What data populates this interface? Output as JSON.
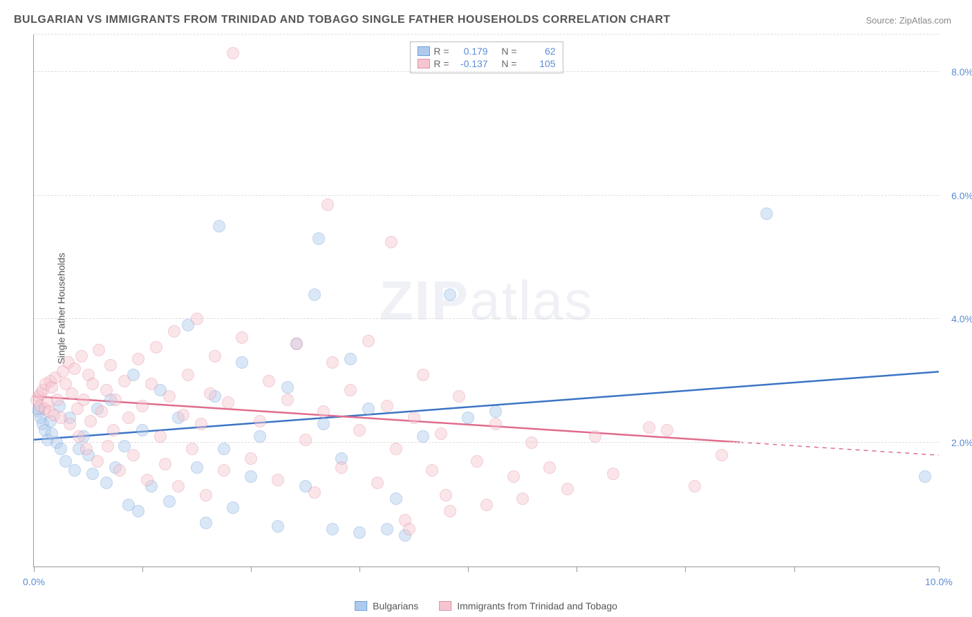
{
  "title": "BULGARIAN VS IMMIGRANTS FROM TRINIDAD AND TOBAGO SINGLE FATHER HOUSEHOLDS CORRELATION CHART",
  "source": "Source: ZipAtlas.com",
  "ylabel": "Single Father Households",
  "watermark": {
    "part1": "ZIP",
    "part2": "atlas"
  },
  "chart": {
    "type": "scatter",
    "background_color": "#ffffff",
    "grid_color": "#dddddd",
    "axis_color": "#999999",
    "xlim": [
      0,
      10
    ],
    "ylim": [
      0,
      8.6
    ],
    "xtick_positions": [
      0,
      1.2,
      2.4,
      3.6,
      4.8,
      6.0,
      7.2,
      8.4,
      10.0
    ],
    "xtick_labels": {
      "0": "0.0%",
      "10": "10.0%"
    },
    "ytick_positions": [
      2.0,
      4.0,
      6.0,
      8.0
    ],
    "ytick_labels": [
      "2.0%",
      "4.0%",
      "6.0%",
      "8.0%"
    ],
    "point_radius": 9,
    "point_opacity": 0.45,
    "label_fontsize": 14,
    "label_color": "#5b8cd6",
    "trend_line_width": 2.5
  },
  "series": [
    {
      "key": "bulgarians",
      "label": "Bulgarians",
      "R": "0.179",
      "N": "62",
      "fill": "#aecbec",
      "stroke": "#6f9fd8",
      "trend_color": "#3b74c4",
      "trend": {
        "x1": 0,
        "y1": 2.05,
        "x2": 10,
        "y2": 3.15,
        "solid_until_x": 10
      },
      "points": [
        [
          0.05,
          2.5
        ],
        [
          0.08,
          2.4
        ],
        [
          0.1,
          2.3
        ],
        [
          0.12,
          2.2
        ],
        [
          0.15,
          2.05
        ],
        [
          0.18,
          2.35
        ],
        [
          0.2,
          2.15
        ],
        [
          0.25,
          2.0
        ],
        [
          0.28,
          2.6
        ],
        [
          0.3,
          1.9
        ],
        [
          0.35,
          1.7
        ],
        [
          0.4,
          2.4
        ],
        [
          0.45,
          1.55
        ],
        [
          0.5,
          1.9
        ],
        [
          0.55,
          2.1
        ],
        [
          0.6,
          1.8
        ],
        [
          0.65,
          1.5
        ],
        [
          0.7,
          2.55
        ],
        [
          0.8,
          1.35
        ],
        [
          0.85,
          2.7
        ],
        [
          0.9,
          1.6
        ],
        [
          1.0,
          1.95
        ],
        [
          1.05,
          1.0
        ],
        [
          1.1,
          3.1
        ],
        [
          1.15,
          0.9
        ],
        [
          1.2,
          2.2
        ],
        [
          1.3,
          1.3
        ],
        [
          1.4,
          2.85
        ],
        [
          1.5,
          1.05
        ],
        [
          1.6,
          2.4
        ],
        [
          1.7,
          3.9
        ],
        [
          1.8,
          1.6
        ],
        [
          1.9,
          0.7
        ],
        [
          2.0,
          2.75
        ],
        [
          2.05,
          5.5
        ],
        [
          2.1,
          1.9
        ],
        [
          2.2,
          0.95
        ],
        [
          2.3,
          3.3
        ],
        [
          2.4,
          1.45
        ],
        [
          2.5,
          2.1
        ],
        [
          2.7,
          0.65
        ],
        [
          2.8,
          2.9
        ],
        [
          2.9,
          3.6
        ],
        [
          3.0,
          1.3
        ],
        [
          3.1,
          4.4
        ],
        [
          3.15,
          5.3
        ],
        [
          3.2,
          2.3
        ],
        [
          3.3,
          0.6
        ],
        [
          3.4,
          1.75
        ],
        [
          3.5,
          3.35
        ],
        [
          3.6,
          0.55
        ],
        [
          3.7,
          2.55
        ],
        [
          3.9,
          0.6
        ],
        [
          4.0,
          1.1
        ],
        [
          4.1,
          0.5
        ],
        [
          4.3,
          2.1
        ],
        [
          4.6,
          4.4
        ],
        [
          4.8,
          2.4
        ],
        [
          5.1,
          2.5
        ],
        [
          8.1,
          5.7
        ],
        [
          9.85,
          1.45
        ],
        [
          0.05,
          2.55
        ]
      ]
    },
    {
      "key": "trinidad",
      "label": "Immigrants from Trinidad and Tobago",
      "R": "-0.137",
      "N": "105",
      "fill": "#f5c6d0",
      "stroke": "#e48fa6",
      "trend_color": "#e06c8c",
      "trend": {
        "x1": 0,
        "y1": 2.75,
        "x2": 10,
        "y2": 1.8,
        "solid_until_x": 7.8
      },
      "points": [
        [
          0.03,
          2.7
        ],
        [
          0.05,
          2.75
        ],
        [
          0.07,
          2.6
        ],
        [
          0.08,
          2.8
        ],
        [
          0.1,
          2.85
        ],
        [
          0.12,
          2.55
        ],
        [
          0.13,
          2.95
        ],
        [
          0.15,
          2.65
        ],
        [
          0.17,
          2.5
        ],
        [
          0.18,
          3.0
        ],
        [
          0.2,
          2.9
        ],
        [
          0.22,
          2.45
        ],
        [
          0.24,
          3.05
        ],
        [
          0.26,
          2.7
        ],
        [
          0.3,
          2.4
        ],
        [
          0.32,
          3.15
        ],
        [
          0.35,
          2.95
        ],
        [
          0.38,
          3.3
        ],
        [
          0.4,
          2.3
        ],
        [
          0.42,
          2.8
        ],
        [
          0.45,
          3.2
        ],
        [
          0.48,
          2.55
        ],
        [
          0.5,
          2.1
        ],
        [
          0.53,
          3.4
        ],
        [
          0.55,
          2.7
        ],
        [
          0.58,
          1.9
        ],
        [
          0.6,
          3.1
        ],
        [
          0.63,
          2.35
        ],
        [
          0.65,
          2.95
        ],
        [
          0.7,
          1.7
        ],
        [
          0.72,
          3.5
        ],
        [
          0.75,
          2.5
        ],
        [
          0.8,
          2.85
        ],
        [
          0.82,
          1.95
        ],
        [
          0.85,
          3.25
        ],
        [
          0.88,
          2.2
        ],
        [
          0.9,
          2.7
        ],
        [
          0.95,
          1.55
        ],
        [
          1.0,
          3.0
        ],
        [
          1.05,
          2.4
        ],
        [
          1.1,
          1.8
        ],
        [
          1.15,
          3.35
        ],
        [
          1.2,
          2.6
        ],
        [
          1.25,
          1.4
        ],
        [
          1.3,
          2.95
        ],
        [
          1.35,
          3.55
        ],
        [
          1.4,
          2.1
        ],
        [
          1.45,
          1.65
        ],
        [
          1.5,
          2.75
        ],
        [
          1.55,
          3.8
        ],
        [
          1.6,
          1.3
        ],
        [
          1.65,
          2.45
        ],
        [
          1.7,
          3.1
        ],
        [
          1.75,
          1.9
        ],
        [
          1.8,
          4.0
        ],
        [
          1.85,
          2.3
        ],
        [
          1.9,
          1.15
        ],
        [
          1.95,
          2.8
        ],
        [
          2.0,
          3.4
        ],
        [
          2.1,
          1.55
        ],
        [
          2.15,
          2.65
        ],
        [
          2.2,
          8.3
        ],
        [
          2.3,
          3.7
        ],
        [
          2.4,
          1.75
        ],
        [
          2.5,
          2.35
        ],
        [
          2.6,
          3.0
        ],
        [
          2.7,
          1.4
        ],
        [
          2.8,
          2.7
        ],
        [
          2.9,
          3.6
        ],
        [
          3.0,
          2.05
        ],
        [
          3.1,
          1.2
        ],
        [
          3.2,
          2.5
        ],
        [
          3.25,
          5.85
        ],
        [
          3.3,
          3.3
        ],
        [
          3.4,
          1.6
        ],
        [
          3.5,
          2.85
        ],
        [
          3.6,
          2.2
        ],
        [
          3.7,
          3.65
        ],
        [
          3.8,
          1.35
        ],
        [
          3.9,
          2.6
        ],
        [
          3.95,
          5.25
        ],
        [
          4.0,
          1.9
        ],
        [
          4.1,
          0.75
        ],
        [
          4.2,
          2.4
        ],
        [
          4.3,
          3.1
        ],
        [
          4.4,
          1.55
        ],
        [
          4.5,
          2.15
        ],
        [
          4.6,
          0.9
        ],
        [
          4.7,
          2.75
        ],
        [
          4.9,
          1.7
        ],
        [
          5.0,
          1.0
        ],
        [
          5.1,
          2.3
        ],
        [
          5.3,
          1.45
        ],
        [
          5.4,
          1.1
        ],
        [
          5.5,
          2.0
        ],
        [
          5.7,
          1.6
        ],
        [
          5.9,
          1.25
        ],
        [
          6.2,
          2.1
        ],
        [
          6.4,
          1.5
        ],
        [
          6.8,
          2.25
        ],
        [
          7.0,
          2.2
        ],
        [
          7.3,
          1.3
        ],
        [
          7.6,
          1.8
        ],
        [
          4.15,
          0.6
        ],
        [
          4.55,
          1.15
        ]
      ]
    }
  ],
  "legend": {
    "r_label": "R =",
    "n_label": "N ="
  },
  "bottom_legend": {
    "items": [
      "bulgarians",
      "trinidad"
    ]
  }
}
